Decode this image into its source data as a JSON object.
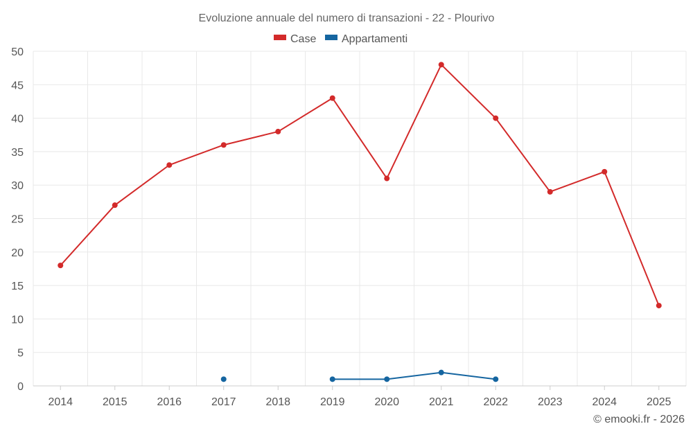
{
  "chart_data": {
    "type": "line",
    "title": "Evoluzione annuale del numero di transazioni - 22 - Plourivo",
    "categories": [
      "2014",
      "2015",
      "2016",
      "2017",
      "2018",
      "2019",
      "2020",
      "2021",
      "2022",
      "2023",
      "2024",
      "2025"
    ],
    "series": [
      {
        "name": "Case",
        "color": "#d32a2a",
        "values": [
          18,
          27,
          33,
          36,
          38,
          43,
          31,
          48,
          40,
          29,
          32,
          12
        ]
      },
      {
        "name": "Appartamenti",
        "color": "#1565a0",
        "values": [
          null,
          null,
          null,
          1,
          null,
          1,
          1,
          2,
          1,
          null,
          null,
          null
        ]
      }
    ],
    "ylim": [
      0,
      50
    ],
    "yticks": [
      0,
      5,
      10,
      15,
      20,
      25,
      30,
      35,
      40,
      45,
      50
    ],
    "grid": true,
    "legend_position": "top-center",
    "xlabel": "",
    "ylabel": ""
  },
  "credit": "© emooki.fr - 2026"
}
